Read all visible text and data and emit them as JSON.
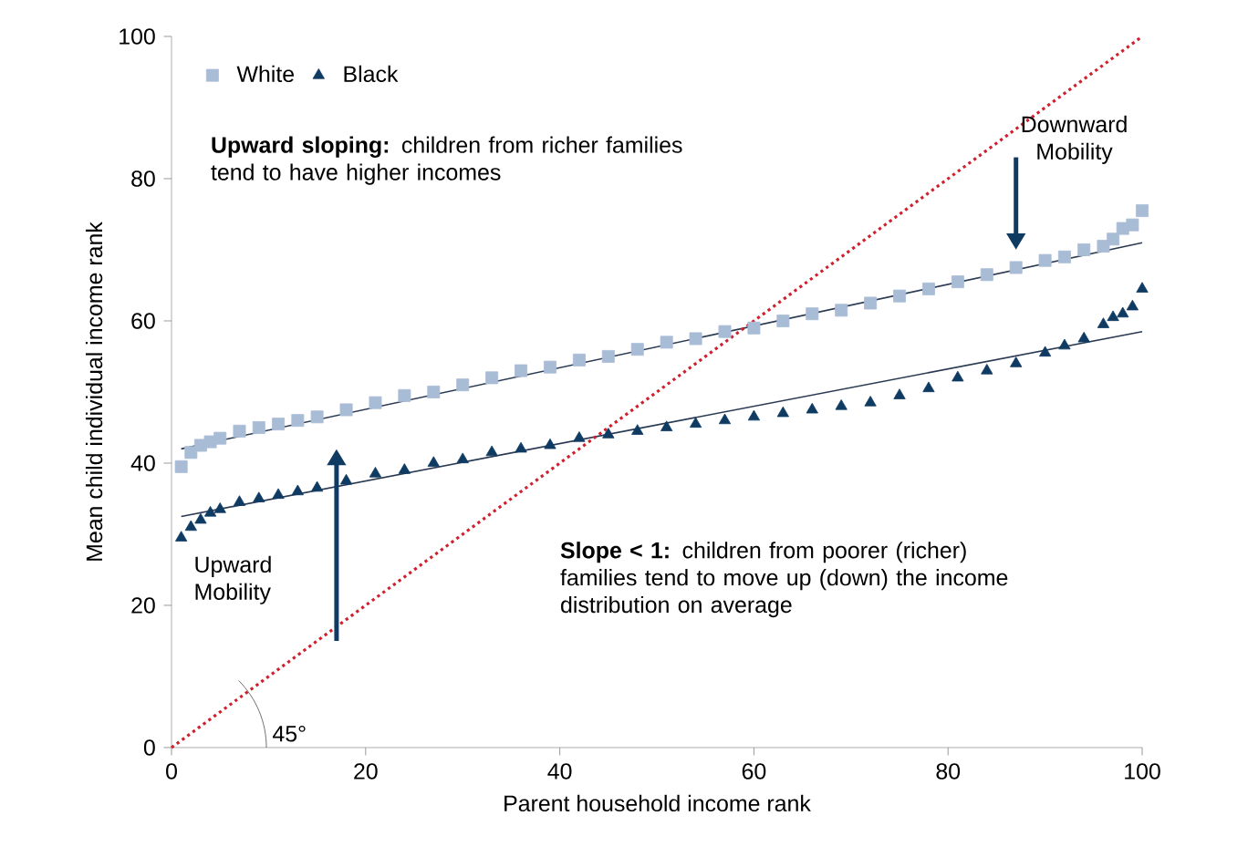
{
  "chart_data": {
    "type": "scatter",
    "xlabel": "Parent household income rank",
    "ylabel": "Mean child individual income rank",
    "xlim": [
      0,
      100
    ],
    "ylim": [
      0,
      100
    ],
    "xticks": [
      0,
      20,
      40,
      60,
      80,
      100
    ],
    "yticks": [
      0,
      20,
      40,
      60,
      80,
      100
    ],
    "grid": false,
    "legend": "top left",
    "series": [
      {
        "name": "White",
        "marker": "square",
        "color": "#a9bcd6",
        "x": [
          1,
          2,
          3,
          4,
          5,
          7,
          9,
          11,
          13,
          15,
          18,
          21,
          24,
          27,
          30,
          33,
          36,
          39,
          42,
          45,
          48,
          51,
          54,
          57,
          60,
          63,
          66,
          69,
          72,
          75,
          78,
          81,
          84,
          87,
          90,
          92,
          94,
          96,
          97,
          98,
          99,
          100
        ],
        "values": [
          39.5,
          41.5,
          42.5,
          43,
          43.5,
          44.5,
          45,
          45.5,
          46,
          46.5,
          47.5,
          48.5,
          49.5,
          50,
          51,
          52,
          53,
          53.5,
          54.5,
          55,
          56,
          57,
          57.5,
          58.5,
          59,
          60,
          61,
          61.5,
          62.5,
          63.5,
          64.5,
          65.5,
          66.5,
          67.5,
          68.5,
          69,
          70,
          70.5,
          71.5,
          73,
          73.5,
          75.5
        ]
      },
      {
        "name": "Black",
        "marker": "triangle",
        "color": "#0f3b63",
        "x": [
          1,
          2,
          3,
          4,
          5,
          7,
          9,
          11,
          13,
          15,
          18,
          21,
          24,
          27,
          30,
          33,
          36,
          39,
          42,
          45,
          48,
          51,
          54,
          57,
          60,
          63,
          66,
          69,
          72,
          75,
          78,
          81,
          84,
          87,
          90,
          92,
          94,
          96,
          97,
          98,
          99,
          100
        ],
        "values": [
          29.5,
          31,
          32,
          33,
          33.5,
          34.5,
          35,
          35.5,
          36,
          36.5,
          37.5,
          38.5,
          39,
          40,
          40.5,
          41.5,
          42,
          42.5,
          43.5,
          44,
          44.5,
          45,
          45.5,
          46,
          46.5,
          47,
          47.5,
          48,
          48.5,
          49.5,
          50.5,
          52,
          53,
          54,
          55.5,
          56.5,
          57.5,
          59.5,
          60.5,
          61,
          62,
          64.5
        ]
      },
      {
        "type": "line",
        "marker": "none",
        "line_style": "solid",
        "color": "#2a3a52",
        "x": [
          1,
          100
        ],
        "values": [
          42,
          71
        ]
      },
      {
        "type": "line",
        "marker": "none",
        "line_style": "solid",
        "color": "#2a3a52",
        "x": [
          1,
          100
        ],
        "values": [
          32.5,
          58.5
        ]
      },
      {
        "type": "line",
        "marker": "none",
        "line_style": "dotted",
        "color": "#d0202e",
        "x": [
          0,
          100
        ],
        "values": [
          0,
          100
        ]
      }
    ],
    "annotations": [
      "**Upward sloping:** children from richer families tend to have higher incomes",
      "**Slope < 1:** children from poorer (richer) families tend to move up (down) the income distribution on average",
      "45°",
      "Upward Mobility",
      "Downward Mobility"
    ]
  }
}
